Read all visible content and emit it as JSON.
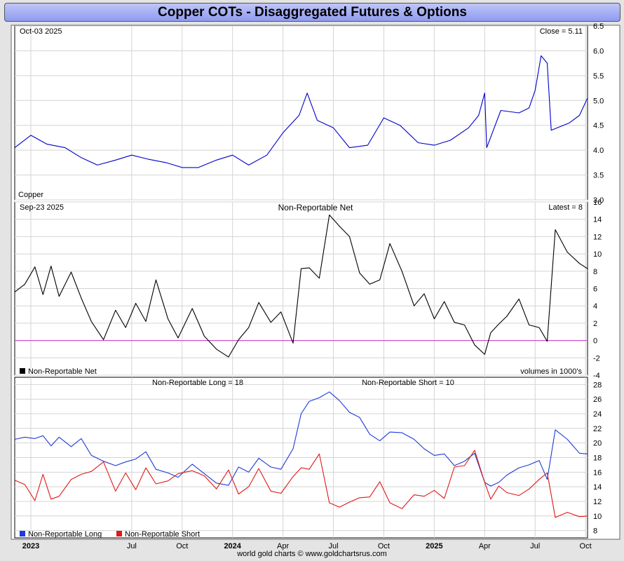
{
  "title": "Copper COTs - Disaggregated Futures & Options",
  "footer": "world gold charts © www.goldchartsrus.com",
  "colors": {
    "price": "#0000cc",
    "net": "#000000",
    "zero": "#cc33cc",
    "long": "#1f3ad6",
    "short": "#e01818",
    "grid": "#d4d4d4"
  },
  "chart_data": [
    {
      "type": "line",
      "title": "Copper",
      "date_label": "Oct-03  2025",
      "latest_label": "Close = 5.11",
      "ylim": [
        3.0,
        6.5
      ],
      "yticks": [
        3.0,
        3.5,
        4.0,
        4.5,
        5.0,
        5.5,
        6.0,
        6.5
      ],
      "ytick_labels": [
        "3.0",
        "3.5",
        "4.0",
        "4.5",
        "5.0",
        "5.5",
        "6.0",
        "6.5"
      ],
      "series": [
        {
          "name": "Copper",
          "x": [
            2022.92,
            2023.0,
            2023.08,
            2023.17,
            2023.25,
            2023.33,
            2023.42,
            2023.5,
            2023.58,
            2023.67,
            2023.75,
            2023.83,
            2023.92,
            2024.0,
            2024.08,
            2024.17,
            2024.25,
            2024.33,
            2024.37,
            2024.42,
            2024.5,
            2024.58,
            2024.67,
            2024.75,
            2024.83,
            2024.92,
            2025.0,
            2025.08,
            2025.17,
            2025.22,
            2025.25,
            2025.26,
            2025.33,
            2025.42,
            2025.47,
            2025.5,
            2025.53,
            2025.56,
            2025.58,
            2025.67,
            2025.72,
            2025.76
          ],
          "values": [
            4.05,
            4.3,
            4.12,
            4.05,
            3.85,
            3.7,
            3.8,
            3.9,
            3.82,
            3.75,
            3.65,
            3.65,
            3.8,
            3.9,
            3.7,
            3.9,
            4.35,
            4.7,
            5.15,
            4.6,
            4.45,
            4.05,
            4.1,
            4.65,
            4.5,
            4.15,
            4.1,
            4.2,
            4.45,
            4.7,
            5.15,
            4.05,
            4.8,
            4.75,
            4.85,
            5.2,
            5.9,
            5.75,
            4.4,
            4.55,
            4.7,
            5.05
          ]
        }
      ]
    },
    {
      "type": "line",
      "title": "Non-Reportable Net",
      "date_label": "Sep-23  2025",
      "latest_label": "Latest = 8",
      "units_label": "volumes in 1000's",
      "ylim": [
        -4,
        16
      ],
      "yticks": [
        -4,
        -2,
        0,
        2,
        4,
        6,
        8,
        10,
        12,
        14,
        16
      ],
      "ytick_labels": [
        "-4",
        "-2",
        "0",
        "2",
        "4",
        "6",
        "8",
        "10",
        "12",
        "14",
        "16"
      ],
      "series": [
        {
          "name": "Non-Reportable Net",
          "x": [
            2022.92,
            2022.97,
            2023.02,
            2023.06,
            2023.1,
            2023.14,
            2023.2,
            2023.25,
            2023.3,
            2023.36,
            2023.42,
            2023.47,
            2023.52,
            2023.57,
            2023.62,
            2023.68,
            2023.73,
            2023.8,
            2023.86,
            2023.92,
            2023.98,
            2024.03,
            2024.08,
            2024.13,
            2024.19,
            2024.24,
            2024.3,
            2024.34,
            2024.38,
            2024.43,
            2024.48,
            2024.53,
            2024.58,
            2024.63,
            2024.68,
            2024.73,
            2024.78,
            2024.84,
            2024.9,
            2024.95,
            2025.0,
            2025.05,
            2025.1,
            2025.15,
            2025.2,
            2025.25,
            2025.28,
            2025.32,
            2025.36,
            2025.42,
            2025.47,
            2025.52,
            2025.56,
            2025.6,
            2025.66,
            2025.72,
            2025.76
          ],
          "values": [
            5.6,
            6.5,
            8.5,
            5.3,
            8.6,
            5.1,
            7.9,
            4.9,
            2.2,
            0.1,
            3.5,
            1.5,
            4.3,
            2.2,
            7.0,
            2.5,
            0.3,
            3.7,
            0.5,
            -1.0,
            -1.9,
            0.1,
            1.5,
            4.4,
            2.1,
            3.3,
            -0.3,
            8.3,
            8.4,
            7.2,
            14.5,
            13.2,
            12.0,
            7.8,
            6.5,
            7.0,
            11.2,
            8.0,
            4.0,
            5.4,
            2.5,
            4.5,
            2.1,
            1.8,
            -0.5,
            -1.6,
            0.9,
            1.9,
            2.8,
            4.8,
            1.8,
            1.5,
            -0.1,
            12.8,
            10.2,
            8.9,
            8.3
          ]
        }
      ]
    },
    {
      "type": "line",
      "long_label": "Non-Reportable Long = 18",
      "short_label": "Non-Reportable Short = 10",
      "ylim": [
        7,
        29
      ],
      "yticks": [
        8,
        10,
        12,
        14,
        16,
        18,
        20,
        22,
        24,
        26,
        28
      ],
      "ytick_labels": [
        "8",
        "10",
        "12",
        "14",
        "16",
        "18",
        "20",
        "22",
        "24",
        "26",
        "28"
      ],
      "series": [
        {
          "name": "Non-Reportable Long",
          "x": [
            2022.92,
            2022.97,
            2023.02,
            2023.06,
            2023.1,
            2023.14,
            2023.2,
            2023.25,
            2023.3,
            2023.36,
            2023.42,
            2023.47,
            2023.52,
            2023.57,
            2023.62,
            2023.68,
            2023.73,
            2023.8,
            2023.86,
            2023.92,
            2023.98,
            2024.03,
            2024.08,
            2024.13,
            2024.19,
            2024.24,
            2024.3,
            2024.34,
            2024.38,
            2024.43,
            2024.48,
            2024.53,
            2024.58,
            2024.63,
            2024.68,
            2024.73,
            2024.78,
            2024.84,
            2024.9,
            2024.95,
            2025.0,
            2025.05,
            2025.1,
            2025.15,
            2025.2,
            2025.25,
            2025.28,
            2025.32,
            2025.36,
            2025.42,
            2025.47,
            2025.52,
            2025.56,
            2025.6,
            2025.66,
            2025.72,
            2025.76
          ],
          "values": [
            20.5,
            20.8,
            20.6,
            21.0,
            19.6,
            20.8,
            19.5,
            20.6,
            18.3,
            17.5,
            16.9,
            17.4,
            17.8,
            18.8,
            16.4,
            15.9,
            15.3,
            17.1,
            15.8,
            14.5,
            14.2,
            16.7,
            16.0,
            17.9,
            16.7,
            16.4,
            19.2,
            24.0,
            25.7,
            26.2,
            27.0,
            25.8,
            24.2,
            23.5,
            21.2,
            20.3,
            21.5,
            21.4,
            20.5,
            19.2,
            18.3,
            18.5,
            16.9,
            17.5,
            18.6,
            14.6,
            14.1,
            14.6,
            15.6,
            16.6,
            17.0,
            17.6,
            15.0,
            21.8,
            20.5,
            18.6,
            18.5
          ]
        },
        {
          "name": "Non-Reportable Short",
          "x": [
            2022.92,
            2022.97,
            2023.02,
            2023.06,
            2023.1,
            2023.14,
            2023.2,
            2023.25,
            2023.3,
            2023.36,
            2023.42,
            2023.47,
            2023.52,
            2023.57,
            2023.62,
            2023.68,
            2023.73,
            2023.8,
            2023.86,
            2023.92,
            2023.98,
            2024.03,
            2024.08,
            2024.13,
            2024.19,
            2024.24,
            2024.3,
            2024.34,
            2024.38,
            2024.43,
            2024.48,
            2024.53,
            2024.58,
            2024.63,
            2024.68,
            2024.73,
            2024.78,
            2024.84,
            2024.9,
            2024.95,
            2025.0,
            2025.05,
            2025.1,
            2025.15,
            2025.2,
            2025.25,
            2025.28,
            2025.32,
            2025.36,
            2025.42,
            2025.47,
            2025.52,
            2025.56,
            2025.6,
            2025.66,
            2025.72,
            2025.76
          ],
          "values": [
            14.9,
            14.3,
            12.1,
            15.7,
            12.3,
            12.7,
            15.0,
            15.7,
            16.1,
            17.4,
            13.4,
            15.9,
            13.6,
            16.6,
            14.4,
            14.8,
            15.8,
            16.2,
            15.5,
            13.7,
            16.3,
            13.0,
            14.0,
            16.5,
            13.4,
            13.1,
            15.4,
            16.6,
            16.4,
            18.5,
            11.8,
            11.2,
            11.9,
            12.5,
            12.6,
            14.7,
            11.8,
            11.0,
            12.9,
            12.7,
            13.5,
            12.4,
            16.7,
            16.9,
            19.0,
            14.6,
            12.3,
            14.1,
            13.2,
            12.8,
            13.7,
            15.0,
            15.9,
            9.8,
            10.5,
            9.9,
            10.0
          ]
        }
      ],
      "legend": [
        "Non-Reportable Long",
        "Non-Reportable Short"
      ]
    }
  ],
  "x_axis": {
    "range": [
      2022.92,
      2025.76
    ],
    "ticks": [
      {
        "x": 2023.0,
        "label": "2023",
        "bold": true
      },
      {
        "x": 2023.5,
        "label": "Jul",
        "bold": false
      },
      {
        "x": 2023.75,
        "label": "Oct",
        "bold": false
      },
      {
        "x": 2024.0,
        "label": "2024",
        "bold": true
      },
      {
        "x": 2024.25,
        "label": "Apr",
        "bold": false
      },
      {
        "x": 2024.5,
        "label": "Jul",
        "bold": false
      },
      {
        "x": 2024.75,
        "label": "Oct",
        "bold": false
      },
      {
        "x": 2025.0,
        "label": "2025",
        "bold": true
      },
      {
        "x": 2025.25,
        "label": "Apr",
        "bold": false
      },
      {
        "x": 2025.5,
        "label": "Jul",
        "bold": false
      },
      {
        "x": 2025.75,
        "label": "Oct",
        "bold": false
      }
    ]
  }
}
